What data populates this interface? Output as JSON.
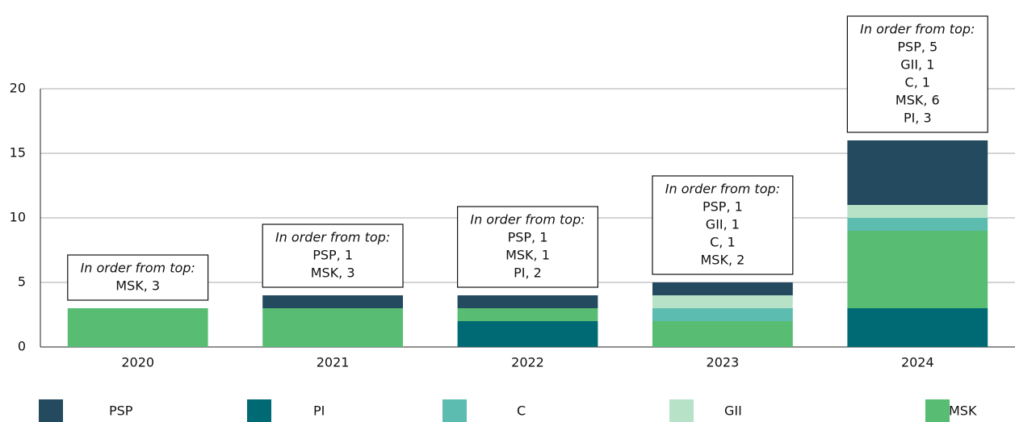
{
  "chart_data": {
    "type": "bar",
    "stacked": true,
    "categories": [
      "2020",
      "2021",
      "2022",
      "2023",
      "2024"
    ],
    "series": [
      {
        "name": "PSP",
        "color": "#234a5e",
        "values": [
          0,
          1,
          1,
          1,
          5
        ]
      },
      {
        "name": "PI",
        "color": "#006a74",
        "values": [
          0,
          0,
          2,
          0,
          3
        ]
      },
      {
        "name": "C",
        "color": "#5dbcb0",
        "values": [
          0,
          0,
          0,
          1,
          1
        ]
      },
      {
        "name": "GII",
        "color": "#b8e2c8",
        "values": [
          0,
          0,
          0,
          1,
          1
        ]
      },
      {
        "name": "MSK",
        "color": "#58bd72",
        "values": [
          3,
          3,
          1,
          2,
          6
        ]
      }
    ],
    "ylim": [
      0,
      20
    ],
    "yticks": [
      0,
      5,
      10,
      15,
      20
    ],
    "grid": true,
    "annotations": [
      {
        "heading": "In order from top:",
        "lines": [
          "MSK, 3"
        ]
      },
      {
        "heading": "In order from top:",
        "lines": [
          "PSP, 1",
          "MSK, 3"
        ]
      },
      {
        "heading": "In order from top:",
        "lines": [
          "PSP, 1",
          "MSK, 1",
          "PI, 2"
        ]
      },
      {
        "heading": "In order from top:",
        "lines": [
          "PSP, 1",
          "GII, 1",
          "C, 1",
          "MSK, 2"
        ]
      },
      {
        "heading": "In order from top:",
        "lines": [
          "PSP, 5",
          "GII, 1",
          "C, 1",
          "MSK, 6",
          "PI, 3"
        ]
      }
    ]
  }
}
